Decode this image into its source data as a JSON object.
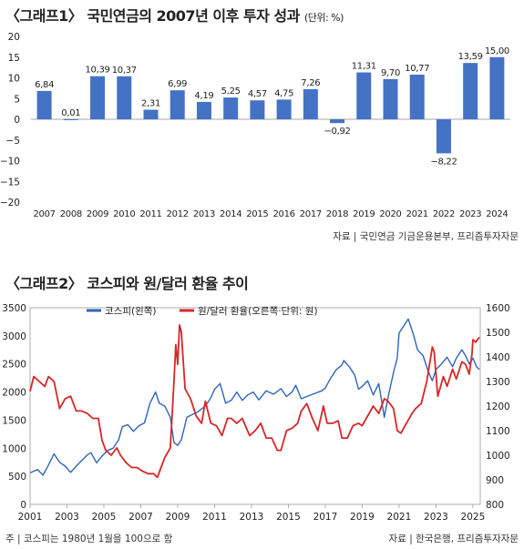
{
  "chart1": {
    "title": "〈그래프1〉 국민연금의 2007년 이후 투자 성과",
    "unit": "(단위: %)",
    "source": "자료 | 국민연금 기금운용본부, 프리즘투자자문"
  },
  "chart2": {
    "title": "〈그래프2〉 코스피와 원/달러 환율 추이",
    "legend": [
      "코스피(왼쪽)",
      "원/달러 환율(오른쪽·단위: 원)"
    ],
    "note": "주 | 코스피는 1980년 1월을 100으로 함",
    "source": "자료 | 한국은행, 프리즘투자자문"
  },
  "colors": {
    "bar": "#4472c4",
    "kospi": "#2f64b8",
    "fx": "#d62728"
  },
  "chart_data": [
    {
      "type": "bar",
      "categories": [
        "2007",
        "2008",
        "2009",
        "2010",
        "2011",
        "2012",
        "2013",
        "2014",
        "2015",
        "2016",
        "2017",
        "2018",
        "2019",
        "2020",
        "2021",
        "2022",
        "2023",
        "2024"
      ],
      "values": [
        6.84,
        0.01,
        10.39,
        10.37,
        2.31,
        6.99,
        4.19,
        5.25,
        4.57,
        4.75,
        7.26,
        -0.92,
        11.31,
        9.7,
        10.77,
        -8.22,
        13.59,
        15.0
      ],
      "value_labels": [
        "6,84",
        "0,01",
        "10,39",
        "10,37",
        "2,31",
        "6,99",
        "4,19",
        "5,25",
        "4,57",
        "4,75",
        "7,26",
        "−0,92",
        "11,31",
        "9,70",
        "10,77",
        "−8,22",
        "13,59",
        "15,00"
      ],
      "y_ticks": [
        "20",
        "15",
        "10",
        "5",
        "0",
        "−5",
        "−10",
        "−15",
        "−20"
      ],
      "ylim": [
        -20,
        20
      ]
    },
    {
      "type": "line",
      "x_ticks": [
        "2001",
        "2003",
        "2005",
        "2007",
        "2009",
        "2011",
        "2013",
        "2015",
        "2017",
        "2019",
        "2021",
        "2023",
        "2025"
      ],
      "xlim": [
        2001,
        2025.4
      ],
      "y_left_ticks": [
        "3500",
        "3000",
        "2500",
        "2000",
        "1500",
        "1000",
        "500",
        "0"
      ],
      "y_left_lim": [
        0,
        3500
      ],
      "y_right_ticks": [
        "1600",
        "1500",
        "1400",
        "1300",
        "1200",
        "1100",
        "1000",
        "900",
        "800"
      ],
      "y_right_lim": [
        800,
        1600
      ],
      "series": [
        {
          "name": "코스피(왼쪽)",
          "axis": "left",
          "points": [
            [
              2001.0,
              560
            ],
            [
              2001.4,
              620
            ],
            [
              2001.7,
              520
            ],
            [
              2002.0,
              700
            ],
            [
              2002.3,
              900
            ],
            [
              2002.6,
              750
            ],
            [
              2002.9,
              680
            ],
            [
              2003.2,
              570
            ],
            [
              2003.5,
              680
            ],
            [
              2003.8,
              780
            ],
            [
              2004.1,
              880
            ],
            [
              2004.3,
              920
            ],
            [
              2004.6,
              740
            ],
            [
              2004.9,
              860
            ],
            [
              2005.2,
              960
            ],
            [
              2005.5,
              1000
            ],
            [
              2005.8,
              1150
            ],
            [
              2006.0,
              1380
            ],
            [
              2006.3,
              1420
            ],
            [
              2006.6,
              1300
            ],
            [
              2006.9,
              1400
            ],
            [
              2007.2,
              1450
            ],
            [
              2007.5,
              1800
            ],
            [
              2007.8,
              2000
            ],
            [
              2008.0,
              1800
            ],
            [
              2008.3,
              1750
            ],
            [
              2008.6,
              1550
            ],
            [
              2008.8,
              1100
            ],
            [
              2009.0,
              1050
            ],
            [
              2009.2,
              1150
            ],
            [
              2009.5,
              1550
            ],
            [
              2009.8,
              1600
            ],
            [
              2010.1,
              1650
            ],
            [
              2010.5,
              1750
            ],
            [
              2010.8,
              1900
            ],
            [
              2011.0,
              2050
            ],
            [
              2011.3,
              2150
            ],
            [
              2011.6,
              1800
            ],
            [
              2011.9,
              1850
            ],
            [
              2012.2,
              2000
            ],
            [
              2012.5,
              1850
            ],
            [
              2012.8,
              1950
            ],
            [
              2013.1,
              2000
            ],
            [
              2013.4,
              1860
            ],
            [
              2013.8,
              2020
            ],
            [
              2014.2,
              1960
            ],
            [
              2014.6,
              2060
            ],
            [
              2014.9,
              1920
            ],
            [
              2015.2,
              2000
            ],
            [
              2015.4,
              2120
            ],
            [
              2015.7,
              1880
            ],
            [
              2016.0,
              1920
            ],
            [
              2016.4,
              1970
            ],
            [
              2016.8,
              2020
            ],
            [
              2017.0,
              2070
            ],
            [
              2017.3,
              2250
            ],
            [
              2017.6,
              2400
            ],
            [
              2017.9,
              2480
            ],
            [
              2018.0,
              2560
            ],
            [
              2018.3,
              2450
            ],
            [
              2018.6,
              2300
            ],
            [
              2018.8,
              2050
            ],
            [
              2019.0,
              2100
            ],
            [
              2019.3,
              2200
            ],
            [
              2019.6,
              1950
            ],
            [
              2019.9,
              2150
            ],
            [
              2020.2,
              1550
            ],
            [
              2020.4,
              1900
            ],
            [
              2020.7,
              2350
            ],
            [
              2020.9,
              2600
            ],
            [
              2021.0,
              3050
            ],
            [
              2021.3,
              3200
            ],
            [
              2021.5,
              3300
            ],
            [
              2021.8,
              3000
            ],
            [
              2022.0,
              2750
            ],
            [
              2022.3,
              2650
            ],
            [
              2022.6,
              2350
            ],
            [
              2022.8,
              2200
            ],
            [
              2023.0,
              2400
            ],
            [
              2023.3,
              2500
            ],
            [
              2023.6,
              2620
            ],
            [
              2023.9,
              2450
            ],
            [
              2024.1,
              2600
            ],
            [
              2024.4,
              2750
            ],
            [
              2024.6,
              2650
            ],
            [
              2024.8,
              2500
            ],
            [
              2025.0,
              2600
            ],
            [
              2025.2,
              2450
            ],
            [
              2025.35,
              2400
            ]
          ]
        },
        {
          "name": "원/달러 환율(오른쪽·단위: 원)",
          "axis": "right",
          "points": [
            [
              2001.0,
              1260
            ],
            [
              2001.2,
              1320
            ],
            [
              2001.5,
              1300
            ],
            [
              2001.8,
              1280
            ],
            [
              2002.0,
              1320
            ],
            [
              2002.3,
              1300
            ],
            [
              2002.6,
              1190
            ],
            [
              2002.9,
              1230
            ],
            [
              2003.2,
              1240
            ],
            [
              2003.5,
              1180
            ],
            [
              2003.8,
              1180
            ],
            [
              2004.1,
              1170
            ],
            [
              2004.4,
              1150
            ],
            [
              2004.7,
              1150
            ],
            [
              2004.9,
              1060
            ],
            [
              2005.1,
              1020
            ],
            [
              2005.4,
              1000
            ],
            [
              2005.7,
              1030
            ],
            [
              2005.9,
              1000
            ],
            [
              2006.2,
              970
            ],
            [
              2006.5,
              950
            ],
            [
              2006.8,
              950
            ],
            [
              2007.1,
              935
            ],
            [
              2007.4,
              925
            ],
            [
              2007.7,
              925
            ],
            [
              2007.9,
              910
            ],
            [
              2008.1,
              950
            ],
            [
              2008.3,
              990
            ],
            [
              2008.6,
              1030
            ],
            [
              2008.8,
              1300
            ],
            [
              2008.9,
              1450
            ],
            [
              2009.0,
              1370
            ],
            [
              2009.1,
              1530
            ],
            [
              2009.2,
              1500
            ],
            [
              2009.4,
              1270
            ],
            [
              2009.7,
              1230
            ],
            [
              2010.0,
              1160
            ],
            [
              2010.3,
              1130
            ],
            [
              2010.5,
              1220
            ],
            [
              2010.8,
              1130
            ],
            [
              2011.1,
              1120
            ],
            [
              2011.4,
              1080
            ],
            [
              2011.7,
              1150
            ],
            [
              2011.9,
              1150
            ],
            [
              2012.2,
              1130
            ],
            [
              2012.5,
              1150
            ],
            [
              2012.9,
              1080
            ],
            [
              2013.2,
              1100
            ],
            [
              2013.5,
              1130
            ],
            [
              2013.8,
              1070
            ],
            [
              2014.1,
              1070
            ],
            [
              2014.4,
              1020
            ],
            [
              2014.6,
              1020
            ],
            [
              2014.9,
              1100
            ],
            [
              2015.2,
              1110
            ],
            [
              2015.5,
              1130
            ],
            [
              2015.7,
              1180
            ],
            [
              2016.0,
              1210
            ],
            [
              2016.3,
              1150
            ],
            [
              2016.6,
              1100
            ],
            [
              2016.9,
              1200
            ],
            [
              2017.1,
              1130
            ],
            [
              2017.4,
              1130
            ],
            [
              2017.7,
              1140
            ],
            [
              2017.9,
              1070
            ],
            [
              2018.2,
              1070
            ],
            [
              2018.5,
              1120
            ],
            [
              2018.8,
              1130
            ],
            [
              2019.0,
              1120
            ],
            [
              2019.3,
              1160
            ],
            [
              2019.6,
              1200
            ],
            [
              2019.9,
              1170
            ],
            [
              2020.2,
              1230
            ],
            [
              2020.4,
              1220
            ],
            [
              2020.7,
              1190
            ],
            [
              2020.9,
              1100
            ],
            [
              2021.1,
              1090
            ],
            [
              2021.4,
              1130
            ],
            [
              2021.7,
              1170
            ],
            [
              2021.9,
              1190
            ],
            [
              2022.2,
              1210
            ],
            [
              2022.5,
              1300
            ],
            [
              2022.8,
              1440
            ],
            [
              2022.9,
              1420
            ],
            [
              2023.1,
              1240
            ],
            [
              2023.4,
              1320
            ],
            [
              2023.6,
              1280
            ],
            [
              2023.9,
              1350
            ],
            [
              2024.1,
              1310
            ],
            [
              2024.4,
              1380
            ],
            [
              2024.6,
              1370
            ],
            [
              2024.8,
              1330
            ],
            [
              2024.95,
              1410
            ],
            [
              2025.0,
              1470
            ],
            [
              2025.15,
              1460
            ],
            [
              2025.25,
              1470
            ],
            [
              2025.35,
              1480
            ]
          ]
        }
      ]
    }
  ]
}
